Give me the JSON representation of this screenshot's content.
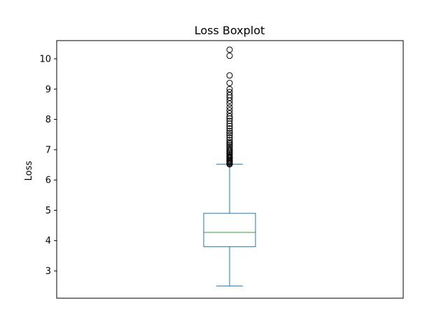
{
  "chart_data": {
    "type": "boxplot",
    "title": "Loss Boxplot",
    "xlabel": "",
    "ylabel": "Loss",
    "ylim": [
      2.1,
      10.6
    ],
    "yticks": [
      3,
      4,
      5,
      6,
      7,
      8,
      9,
      10
    ],
    "grid": false,
    "legend": "none",
    "box": {
      "min": 2.5,
      "q1": 3.8,
      "median": 4.27,
      "q3": 4.9,
      "max": 6.52
    },
    "outliers": [
      6.52,
      6.55,
      6.58,
      6.6,
      6.63,
      6.66,
      6.7,
      6.73,
      6.76,
      6.8,
      6.84,
      6.88,
      6.92,
      6.96,
      7.0,
      7.05,
      7.1,
      7.15,
      7.2,
      7.25,
      7.32,
      7.4,
      7.48,
      7.55,
      7.62,
      7.7,
      7.78,
      7.86,
      7.95,
      8.03,
      8.1,
      8.2,
      8.3,
      8.4,
      8.52,
      8.62,
      8.72,
      8.8,
      8.9,
      9.0,
      9.2,
      9.45,
      10.1,
      10.3
    ],
    "colors": {
      "box": "#1f77b4",
      "median": "#2ca02c",
      "outlier": "#000000"
    }
  }
}
